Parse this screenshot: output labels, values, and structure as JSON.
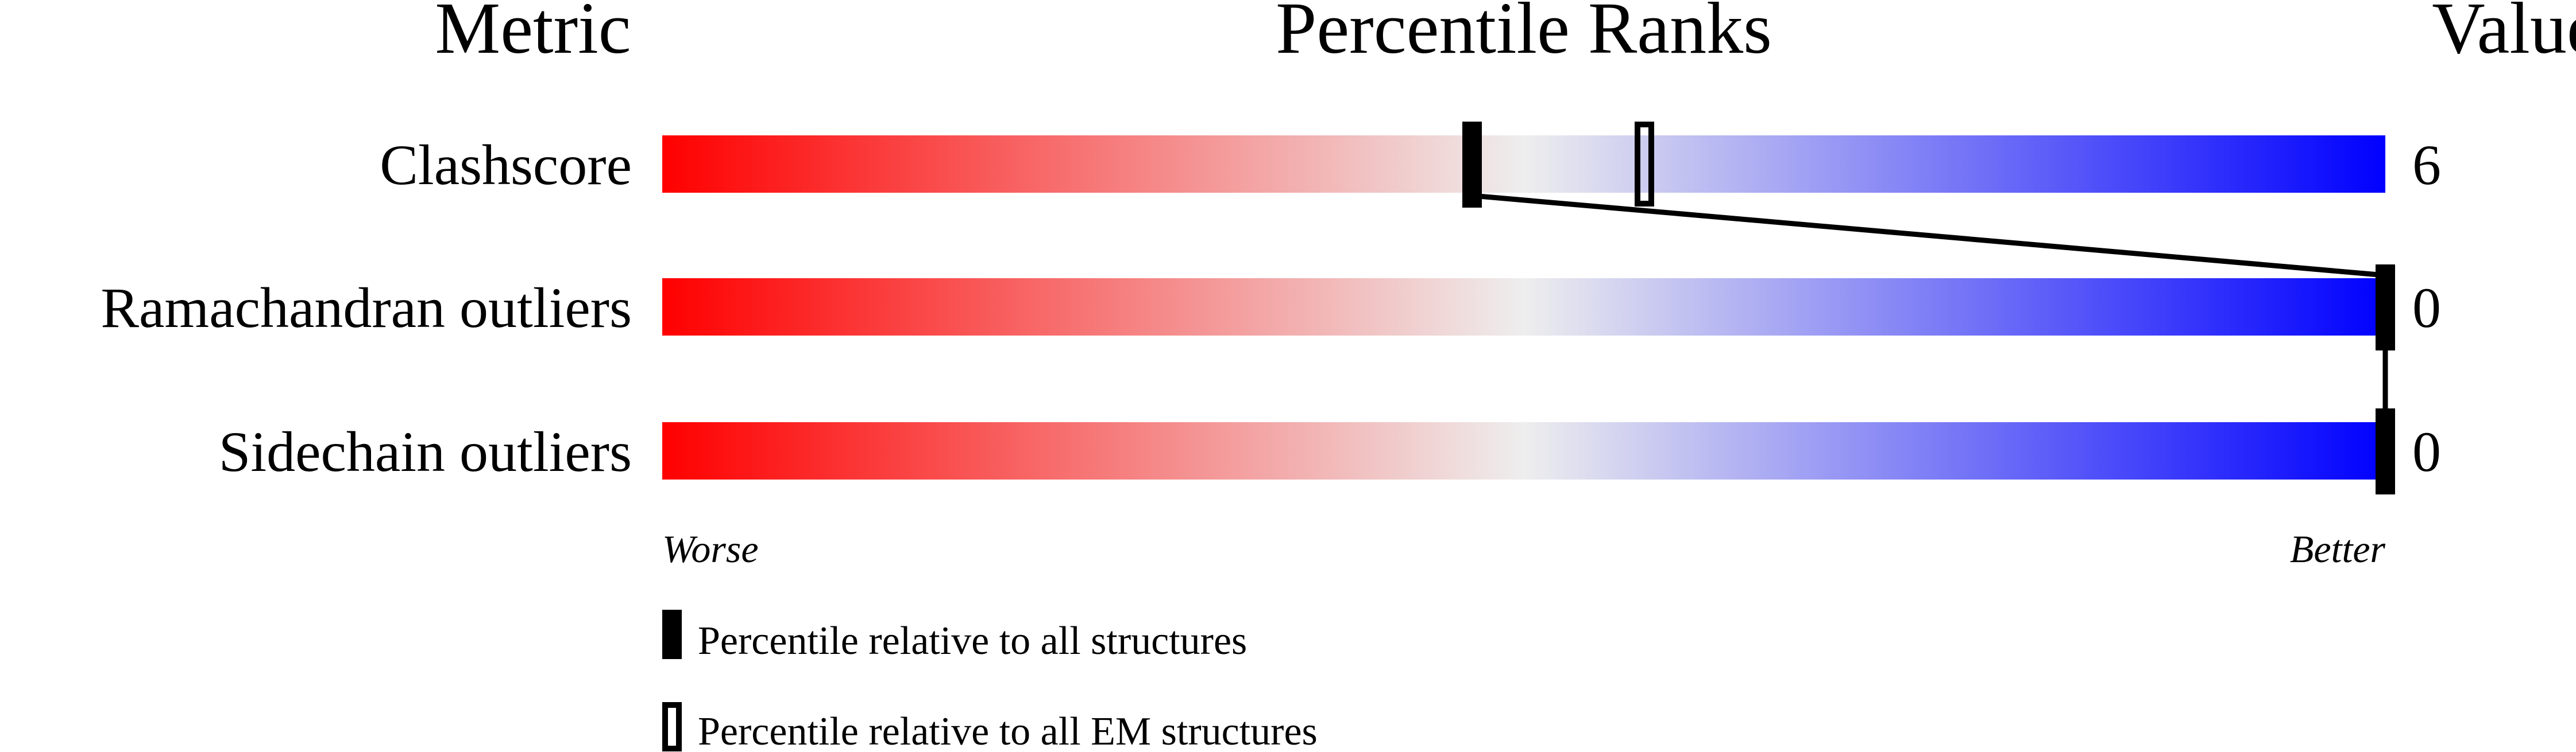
{
  "chart_data": {
    "type": "percentile-slider",
    "headers": {
      "metric": "Metric",
      "ranks": "Percentile Ranks",
      "value": "Value"
    },
    "xlim": [
      0,
      100
    ],
    "axis_labels": {
      "left": "Worse",
      "right": "Better"
    },
    "gradient_colors": {
      "worse": "#ff0000",
      "middle": "#eeeeee",
      "better": "#0000ff"
    },
    "metrics": [
      {
        "name": "Clashscore",
        "value": "6",
        "percentile_all": 47,
        "percentile_em": 57
      },
      {
        "name": "Ramachandran outliers",
        "value": "0",
        "percentile_all": 100,
        "percentile_em": 100
      },
      {
        "name": "Sidechain outliers",
        "value": "0",
        "percentile_all": 100,
        "percentile_em": 100
      }
    ],
    "legend": [
      {
        "label": "Percentile relative to all structures",
        "marker": "filled"
      },
      {
        "label": "Percentile relative to all EM structures",
        "marker": "open"
      }
    ]
  }
}
